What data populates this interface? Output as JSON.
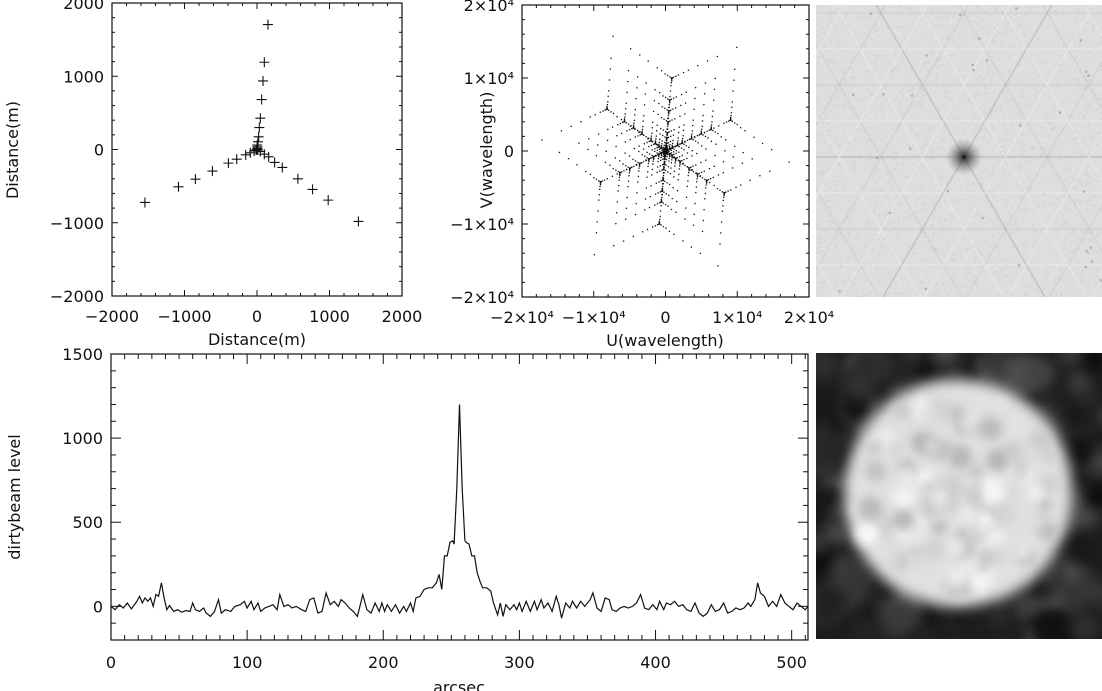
{
  "chart_data": [
    {
      "type": "scatter",
      "marker": "plus",
      "xlabel": "Distance(m)",
      "ylabel": "Distance(m)",
      "xlim": [
        -2000,
        2000
      ],
      "ylim": [
        -2000,
        2000
      ],
      "xticks": [
        {
          "v": -2000,
          "label": "−2000"
        },
        {
          "v": -1000,
          "label": "−1000"
        },
        {
          "v": 0,
          "label": "0"
        },
        {
          "v": 1000,
          "label": "1000"
        },
        {
          "v": 2000,
          "label": "2000"
        }
      ],
      "yticks": [
        {
          "v": -2000,
          "label": "−2000"
        },
        {
          "v": -1000,
          "label": "−1000"
        },
        {
          "v": 0,
          "label": "0"
        },
        {
          "v": 1000,
          "label": "1000"
        },
        {
          "v": 2000,
          "label": "2000"
        }
      ],
      "points": [
        [
          151,
          1705
        ],
        [
          101,
          1191
        ],
        [
          83,
          936
        ],
        [
          64,
          682
        ],
        [
          46,
          427
        ],
        [
          32,
          300
        ],
        [
          23,
          173
        ],
        [
          14,
          105
        ],
        [
          5,
          36
        ],
        [
          -1546,
          -723
        ],
        [
          -1083,
          -509
        ],
        [
          -849,
          -405
        ],
        [
          -615,
          -295
        ],
        [
          -394,
          -186
        ],
        [
          -280,
          -132
        ],
        [
          -156,
          -73
        ],
        [
          -92,
          -45
        ],
        [
          1399,
          -982
        ],
        [
          982,
          -691
        ],
        [
          766,
          -545
        ],
        [
          564,
          -400
        ],
        [
          349,
          -245
        ],
        [
          243,
          -177
        ],
        [
          161,
          -100
        ],
        [
          101,
          -64
        ],
        [
          0,
          0
        ],
        [
          6,
          14
        ],
        [
          12,
          -7
        ],
        [
          -12,
          -7
        ],
        [
          -40,
          -20
        ],
        [
          45,
          -28
        ],
        [
          3,
          60
        ]
      ]
    },
    {
      "type": "scatter",
      "marker": "dot",
      "xlabel": "U(wavelength)",
      "ylabel": "V(wavelength)",
      "xlim": [
        -20000,
        20000
      ],
      "ylim": [
        -20000,
        20000
      ],
      "xticks": [
        {
          "v": -20000,
          "label": "−2×10⁴"
        },
        {
          "v": -10000,
          "label": "−1×10⁴"
        },
        {
          "v": 0,
          "label": "0"
        },
        {
          "v": 10000,
          "label": "1×10⁴"
        },
        {
          "v": 20000,
          "label": "2×10⁴"
        }
      ],
      "yticks": [
        {
          "v": -20000,
          "label": "−2×10⁴"
        },
        {
          "v": -10000,
          "label": "−1×10⁴"
        },
        {
          "v": 0,
          "label": "0"
        },
        {
          "v": 10000,
          "label": "1×10⁴"
        },
        {
          "v": 20000,
          "label": "2×10⁴"
        }
      ]
    },
    {
      "type": "line",
      "xlabel": "arcsec",
      "ylabel": "dirtybeam level",
      "xlim": [
        0,
        512
      ],
      "ylim": [
        -200,
        1500
      ],
      "xticks": [
        {
          "v": 0,
          "label": "0"
        },
        {
          "v": 100,
          "label": "100"
        },
        {
          "v": 200,
          "label": "200"
        },
        {
          "v": 300,
          "label": "300"
        },
        {
          "v": 400,
          "label": "400"
        },
        {
          "v": 500,
          "label": "500"
        }
      ],
      "yticks": [
        {
          "v": 0,
          "label": "0"
        },
        {
          "v": 500,
          "label": "500"
        },
        {
          "v": 1000,
          "label": "1000"
        },
        {
          "v": 1500,
          "label": "1500"
        }
      ],
      "x": [
        0,
        3,
        6,
        9,
        12,
        15,
        19,
        21,
        23,
        25,
        27,
        29,
        31,
        33,
        35,
        37,
        39,
        41,
        43,
        46,
        49,
        52,
        55,
        58,
        60,
        62,
        65,
        68,
        70,
        73,
        76,
        79,
        81,
        84,
        88,
        91,
        95,
        98,
        100,
        103,
        105,
        108,
        110,
        113,
        116,
        119,
        122,
        124,
        127,
        130,
        133,
        136,
        140,
        143,
        146,
        149,
        152,
        155,
        158,
        161,
        164,
        167,
        169,
        172,
        175,
        178,
        181,
        185,
        188,
        191,
        194,
        197,
        199,
        201,
        203,
        206,
        209,
        212,
        215,
        217,
        220,
        222,
        224,
        227,
        230,
        233,
        236,
        239,
        241,
        243,
        245,
        247,
        249,
        251,
        252,
        254,
        256,
        258,
        260,
        261,
        263,
        265,
        267,
        269,
        271,
        273,
        276,
        279,
        281,
        284,
        286,
        288,
        290,
        293,
        296,
        298,
        300,
        302,
        305,
        308,
        311,
        313,
        316,
        318,
        321,
        324,
        327,
        329,
        331,
        334,
        337,
        339,
        342,
        345,
        348,
        352,
        354,
        357,
        360,
        363,
        366,
        368,
        371,
        374,
        377,
        380,
        383,
        386,
        389,
        392,
        395,
        398,
        401,
        403,
        406,
        408,
        411,
        414,
        417,
        420,
        423,
        426,
        429,
        432,
        435,
        438,
        441,
        444,
        447,
        450,
        453,
        456,
        459,
        462,
        465,
        468,
        470,
        473,
        475,
        477,
        480,
        483,
        486,
        489,
        492,
        495,
        498,
        501,
        504,
        507,
        510,
        512
      ],
      "y": [
        0,
        -20,
        10,
        -10,
        20,
        -15,
        30,
        60,
        20,
        50,
        30,
        50,
        0,
        70,
        60,
        140,
        50,
        -20,
        5,
        -30,
        -20,
        -35,
        -25,
        -30,
        20,
        -20,
        -30,
        -10,
        -40,
        -60,
        -30,
        40,
        -40,
        -20,
        -30,
        0,
        10,
        30,
        -10,
        30,
        -20,
        20,
        -30,
        -10,
        0,
        10,
        -20,
        70,
        0,
        10,
        -10,
        0,
        -20,
        -30,
        40,
        50,
        -40,
        -30,
        80,
        10,
        30,
        0,
        40,
        20,
        -10,
        -30,
        -60,
        70,
        -20,
        -40,
        20,
        -30,
        20,
        -30,
        10,
        -30,
        10,
        -40,
        0,
        -30,
        20,
        -30,
        50,
        60,
        100,
        110,
        110,
        140,
        190,
        100,
        300,
        300,
        380,
        390,
        370,
        700,
        1200,
        700,
        390,
        380,
        370,
        300,
        300,
        200,
        150,
        110,
        110,
        90,
        20,
        -50,
        20,
        -60,
        10,
        -20,
        10,
        -20,
        20,
        -30,
        30,
        -30,
        30,
        -20,
        40,
        -10,
        20,
        -30,
        60,
        10,
        -70,
        20,
        -10,
        30,
        -10,
        30,
        0,
        40,
        80,
        -10,
        -30,
        50,
        40,
        -20,
        -30,
        -10,
        0,
        -10,
        0,
        20,
        70,
        -10,
        -20,
        10,
        -20,
        30,
        -20,
        20,
        10,
        30,
        0,
        10,
        -20,
        -30,
        20,
        -40,
        -60,
        -40,
        10,
        -30,
        -20,
        20,
        -40,
        -30,
        -10,
        -20,
        -10,
        20,
        0,
        40,
        140,
        80,
        60,
        0,
        30,
        0,
        70,
        20,
        0,
        -20,
        20,
        0,
        -20,
        0
      ]
    }
  ],
  "colors": {
    "ink": "#111111",
    "background": "#ffffff",
    "beam_background": "#dedede",
    "source_background": "#1e1e1e",
    "source_disc": "#e2e2e2"
  }
}
